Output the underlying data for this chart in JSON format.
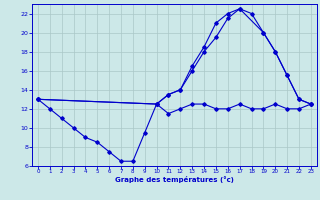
{
  "xlabel": "Graphe des températures (°c)",
  "xlim": [
    -0.5,
    23.5
  ],
  "ylim": [
    6,
    23
  ],
  "yticks": [
    6,
    8,
    10,
    12,
    14,
    16,
    18,
    20,
    22
  ],
  "xticks": [
    0,
    1,
    2,
    3,
    4,
    5,
    6,
    7,
    8,
    9,
    10,
    11,
    12,
    13,
    14,
    15,
    16,
    17,
    18,
    19,
    20,
    21,
    22,
    23
  ],
  "background_color": "#cce8e8",
  "grid_color": "#aac8c8",
  "line_color": "#0000cc",
  "line1_x": [
    0,
    1,
    2,
    3,
    4,
    5,
    6,
    7,
    8,
    9,
    10,
    11,
    12,
    13,
    14,
    15,
    16,
    17,
    18,
    19,
    20,
    21,
    22,
    23
  ],
  "line1_y": [
    13,
    12,
    11,
    10,
    9.0,
    8.5,
    7.5,
    6.5,
    6.5,
    9.5,
    12.5,
    13.5,
    14.0,
    16.0,
    18.0,
    19.5,
    21.5,
    22.5,
    22.0,
    20.0,
    18.0,
    15.5,
    13.0,
    12.5
  ],
  "line2_x": [
    0,
    10,
    11,
    12,
    13,
    14,
    15,
    16,
    17,
    19,
    20,
    21,
    22,
    23
  ],
  "line2_y": [
    13,
    12.5,
    13.5,
    14.0,
    16.5,
    18.5,
    21.0,
    22.0,
    22.5,
    20.0,
    18.0,
    15.5,
    13.0,
    12.5
  ],
  "line3_x": [
    0,
    10,
    11,
    12,
    13,
    14,
    15,
    16,
    17,
    18,
    19,
    20,
    21,
    22,
    23
  ],
  "line3_y": [
    13,
    12.5,
    11.5,
    12.0,
    12.5,
    12.5,
    12.0,
    12.0,
    12.5,
    12.0,
    12.0,
    12.5,
    12.0,
    12.0,
    12.5
  ]
}
